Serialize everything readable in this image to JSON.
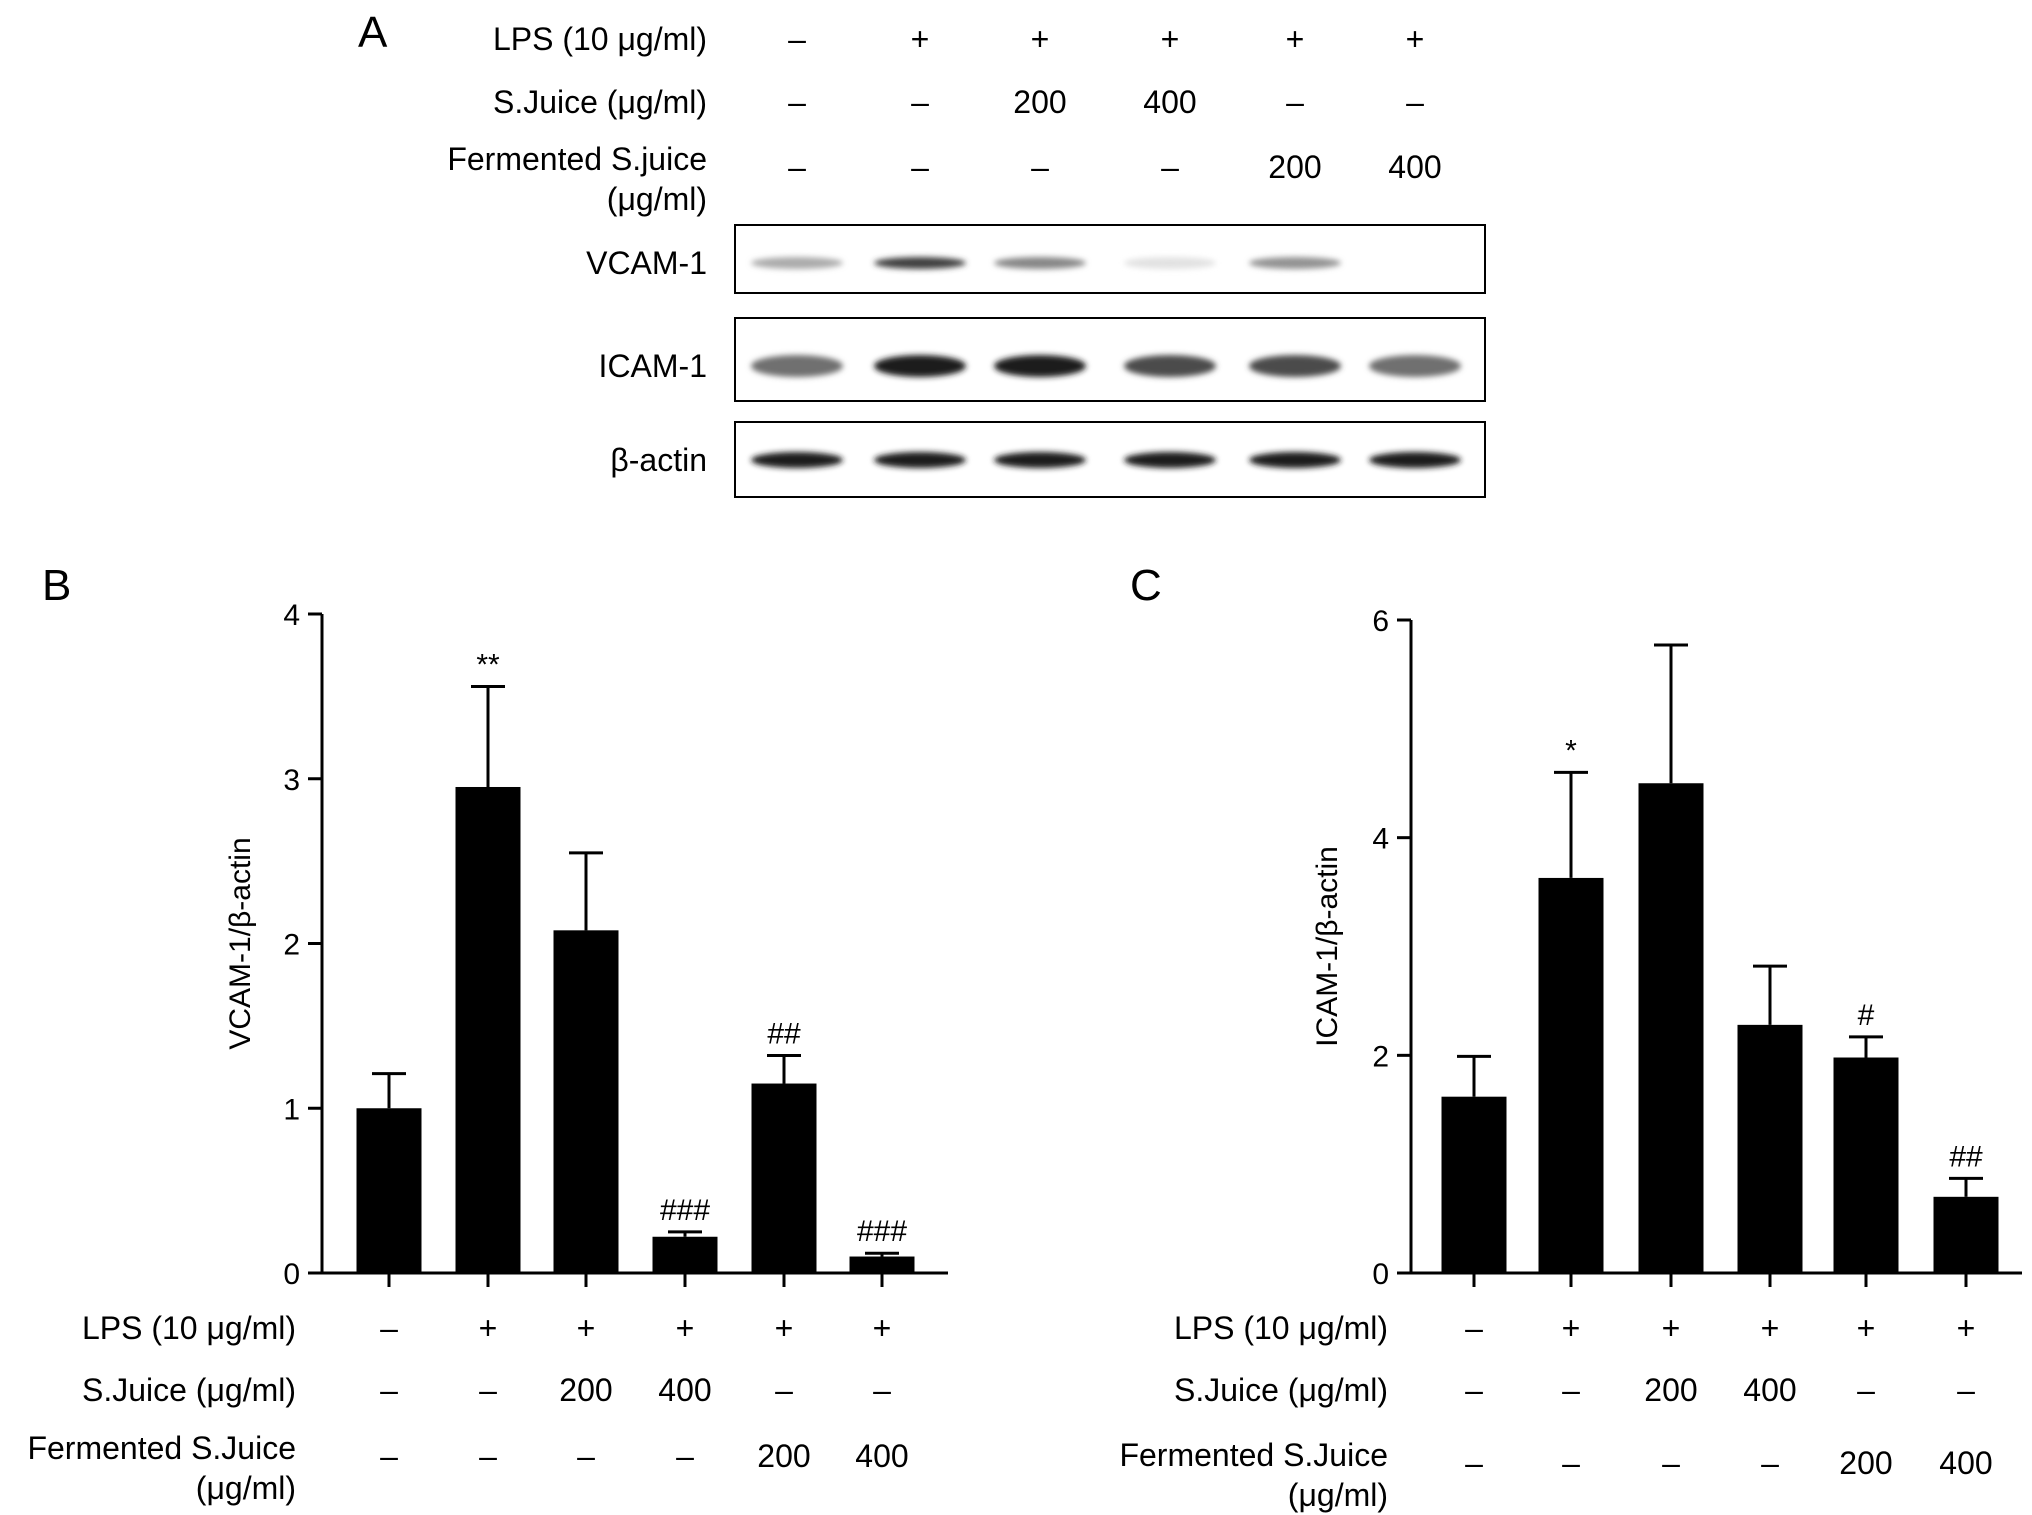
{
  "panel_a": {
    "letter": "A",
    "conditions": [
      {
        "label": "LPS (10 μg/ml)",
        "values": [
          "–",
          "+",
          "+",
          "+",
          "+",
          "+"
        ]
      },
      {
        "label": "S.Juice (μg/ml)",
        "values": [
          "–",
          "–",
          "200",
          "400",
          "–",
          "–"
        ]
      },
      {
        "label_lines": [
          "Fermented S.juice",
          "(μg/ml)"
        ],
        "values": [
          "–",
          "–",
          "–",
          "–",
          "200",
          "400"
        ]
      }
    ],
    "blots": [
      {
        "label": "VCAM-1",
        "band_intensity": [
          0.35,
          0.8,
          0.5,
          0.12,
          0.45,
          0.0
        ]
      },
      {
        "label": "ICAM-1",
        "band_intensity": [
          0.6,
          0.95,
          0.95,
          0.75,
          0.75,
          0.6
        ]
      },
      {
        "label": "β-actin",
        "band_intensity": [
          0.95,
          0.95,
          0.95,
          0.95,
          0.95,
          0.95
        ]
      }
    ]
  },
  "chart_data": [
    {
      "panel": "B",
      "type": "bar",
      "ylabel": "VCAM-1/β-actin",
      "ylim": [
        0,
        4
      ],
      "yticks": [
        0,
        1,
        2,
        3,
        4
      ],
      "values": [
        1.0,
        2.95,
        2.08,
        0.22,
        1.15,
        0.1
      ],
      "errors": [
        0.21,
        0.61,
        0.47,
        0.03,
        0.17,
        0.02
      ],
      "annotations": [
        "",
        "**",
        "",
        "###",
        "##",
        "###"
      ],
      "conditions": [
        {
          "label": "LPS (10 μg/ml)",
          "values": [
            "–",
            "+",
            "+",
            "+",
            "+",
            "+"
          ]
        },
        {
          "label": "S.Juice (μg/ml)",
          "values": [
            "–",
            "–",
            "200",
            "400",
            "–",
            "–"
          ]
        },
        {
          "label_lines": [
            "Fermented S.Juice",
            "(μg/ml)"
          ],
          "values": [
            "–",
            "–",
            "–",
            "–",
            "200",
            "400"
          ]
        }
      ]
    },
    {
      "panel": "C",
      "type": "bar",
      "ylabel": "ICAM-1/β-actin",
      "ylim": [
        0,
        6
      ],
      "yticks": [
        0,
        2,
        4,
        6
      ],
      "values": [
        1.62,
        3.63,
        4.5,
        2.28,
        1.98,
        0.7
      ],
      "errors": [
        0.37,
        0.97,
        1.27,
        0.54,
        0.19,
        0.17
      ],
      "annotations": [
        "",
        "*",
        "",
        "",
        "#",
        "##"
      ],
      "conditions": [
        {
          "label": "LPS (10 μg/ml)",
          "values": [
            "–",
            "+",
            "+",
            "+",
            "+",
            "+"
          ]
        },
        {
          "label": "S.Juice (μg/ml)",
          "values": [
            "–",
            "–",
            "200",
            "400",
            "–",
            "–"
          ]
        },
        {
          "label_lines": [
            "Fermented S.Juice",
            "(μg/ml)"
          ],
          "values": [
            "–",
            "–",
            "–",
            "–",
            "200",
            "400"
          ]
        }
      ]
    }
  ]
}
